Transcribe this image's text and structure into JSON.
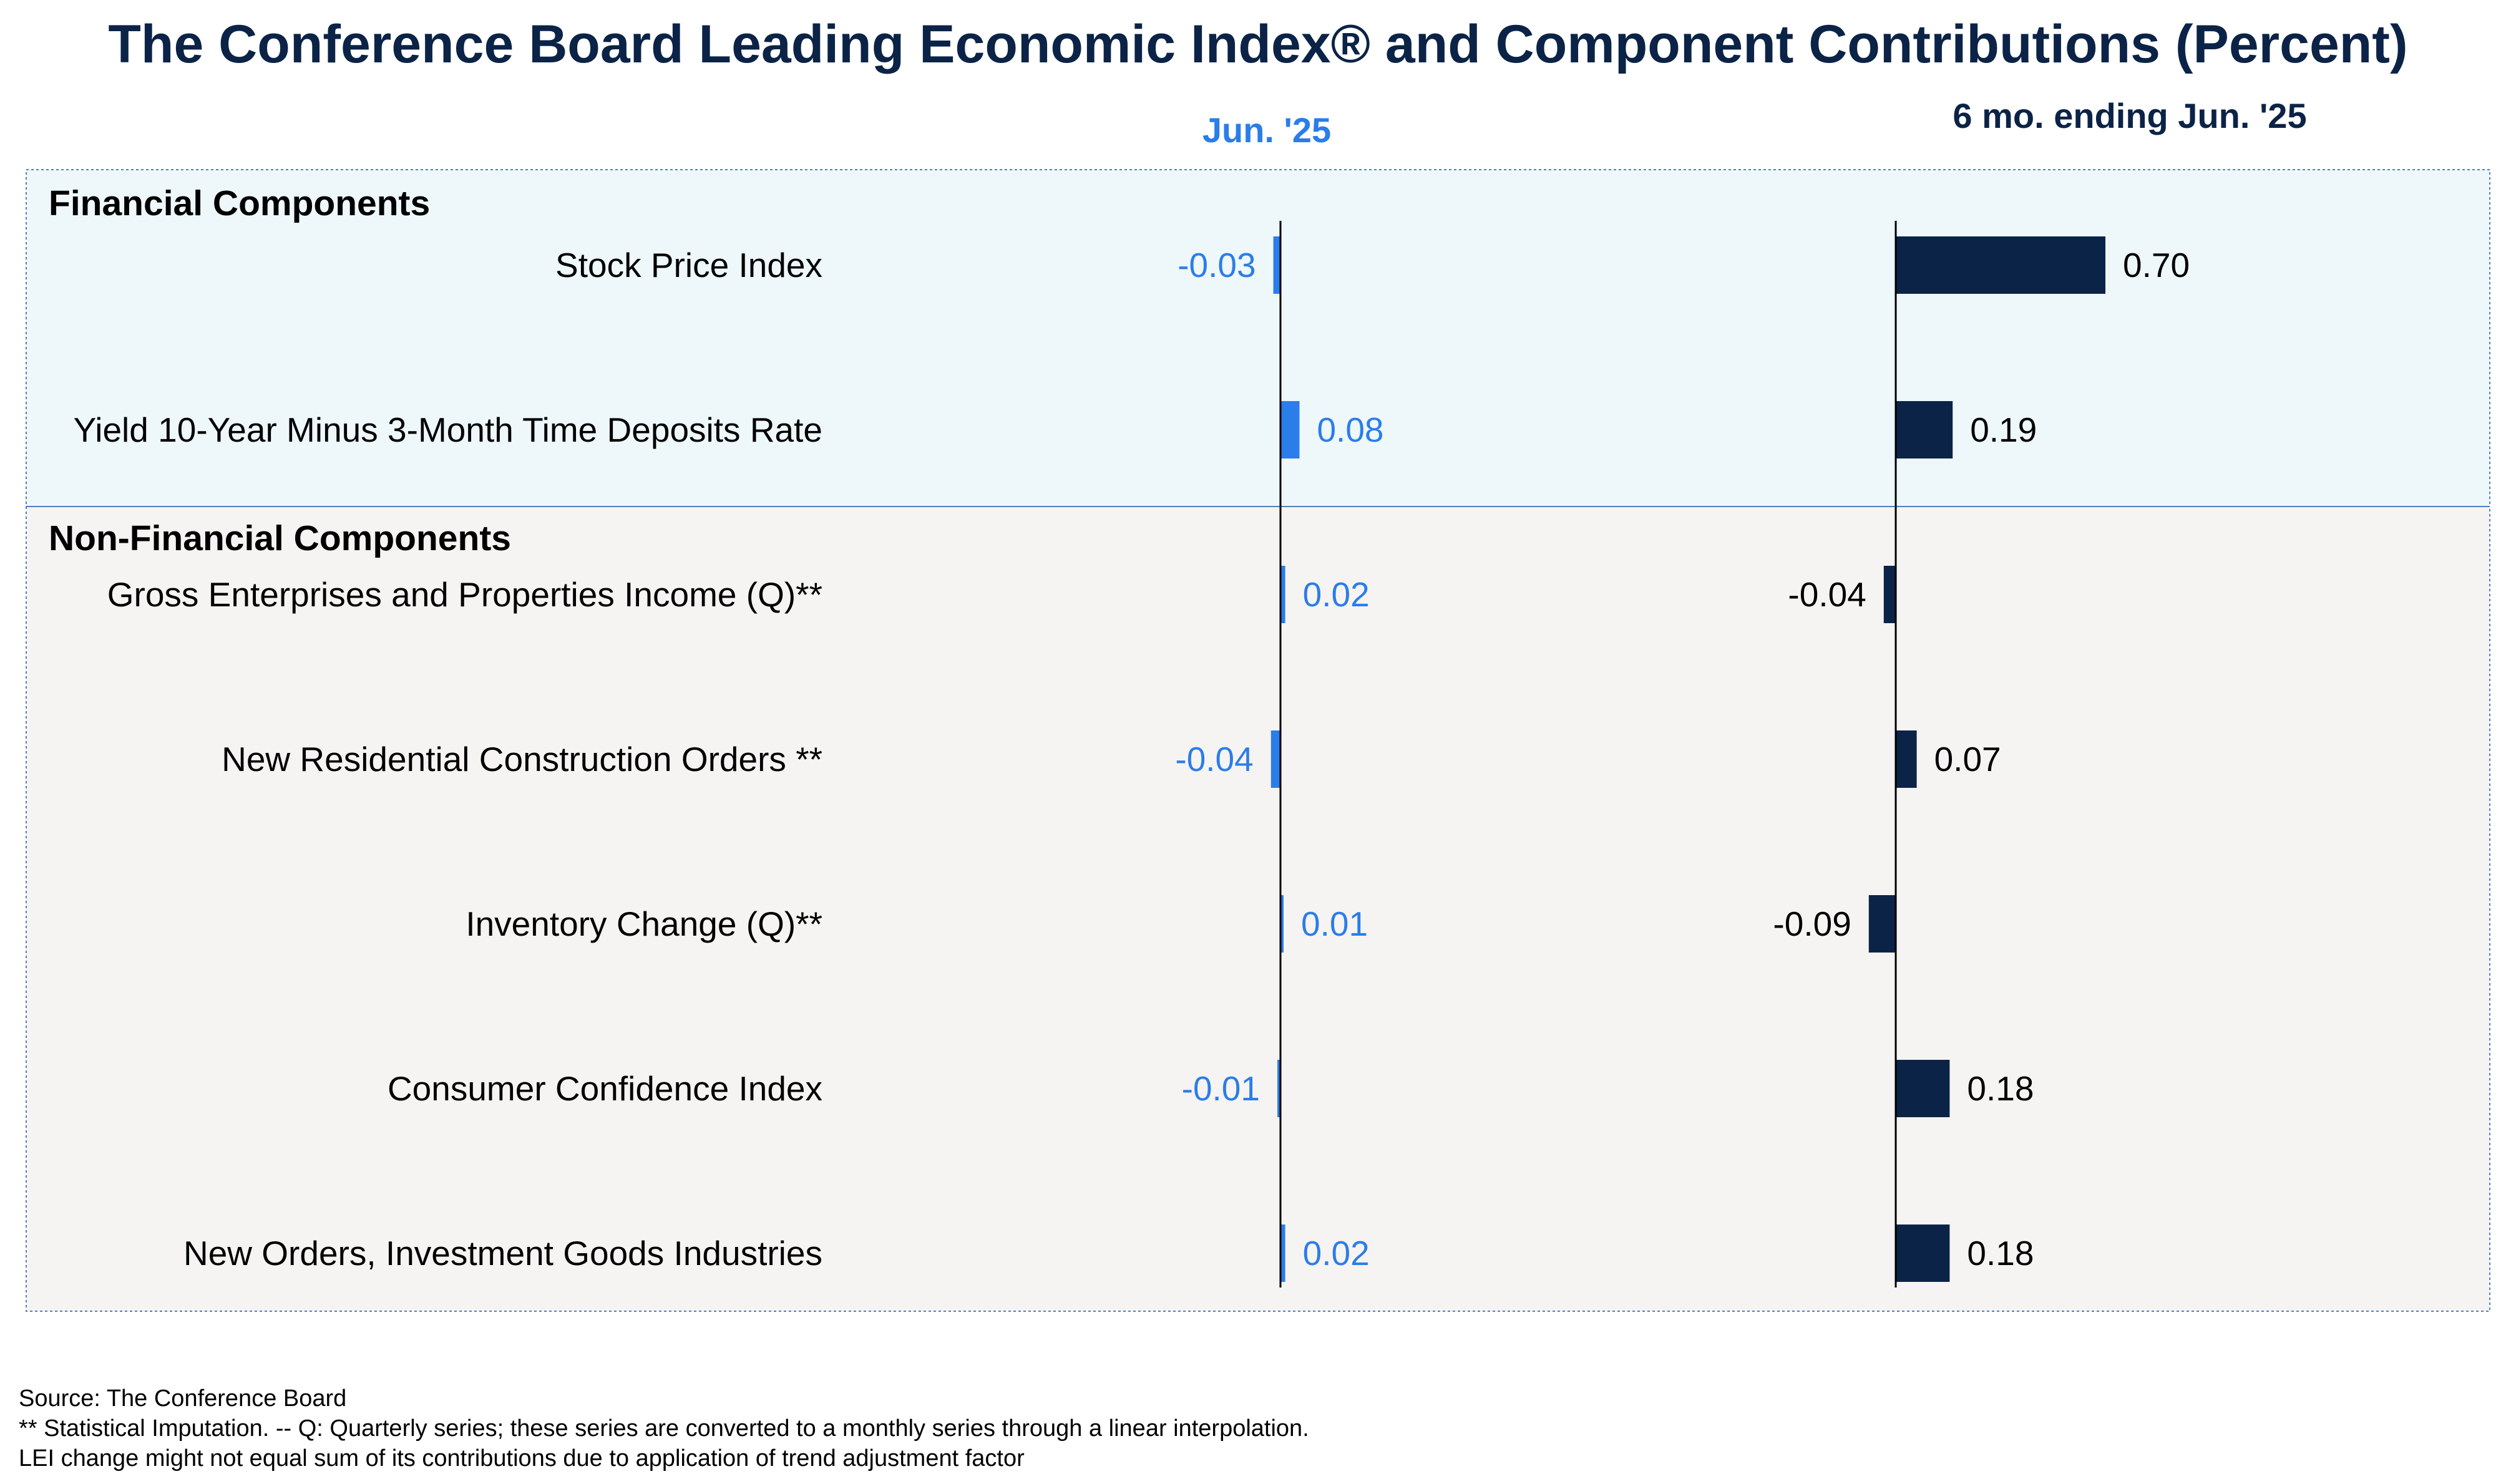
{
  "title": "The Conference Board Leading Economic Index® and Component Contributions (Percent)",
  "colors": {
    "title": "#0b2346",
    "monthly_bar": "#2b7de9",
    "six_month_bar": "#0b2346",
    "financial_bg": "#eef7fa",
    "non_financial_bg": "#f6f4f2",
    "border": "#4f7fc0"
  },
  "chart_data": {
    "type": "bar",
    "orientation": "horizontal",
    "panels": [
      "Jun. '25",
      "6 mo. ending Jun. '25"
    ],
    "sections": [
      {
        "name": "Financial Components",
        "categories": [
          "Stock Price Index",
          "Yield 10-Year Minus 3-Month Time Deposits Rate"
        ]
      },
      {
        "name": "Non-Financial Components",
        "categories": [
          "Gross Enterprises and Properties Income (Q)**",
          "New Residential Construction Orders **",
          "Inventory Change (Q)**",
          "Consumer Confidence Index",
          "New Orders, Investment Goods Industries"
        ]
      }
    ],
    "series": [
      {
        "name": "Jun. '25",
        "values": [
          -0.03,
          0.08,
          0.02,
          -0.04,
          0.01,
          -0.01,
          0.02
        ],
        "labels": [
          "-0.03",
          "0.08",
          "0.02",
          "-0.04",
          "0.01",
          "-0.01",
          "0.02"
        ]
      },
      {
        "name": "6 mo. ending Jun. '25",
        "values": [
          0.7,
          0.19,
          -0.04,
          0.07,
          -0.09,
          0.18,
          0.18
        ],
        "labels": [
          "0.70",
          "0.19",
          "-0.04",
          "0.07",
          "-0.09",
          "0.18",
          "0.18"
        ]
      }
    ]
  },
  "footnotes": [
    "Source: The Conference Board",
    "**  Statistical Imputation. -- Q: Quarterly series; these series are converted to a monthly series through a linear interpolation.",
    "LEI change might not equal sum of its contributions due to application of trend adjustment factor"
  ]
}
